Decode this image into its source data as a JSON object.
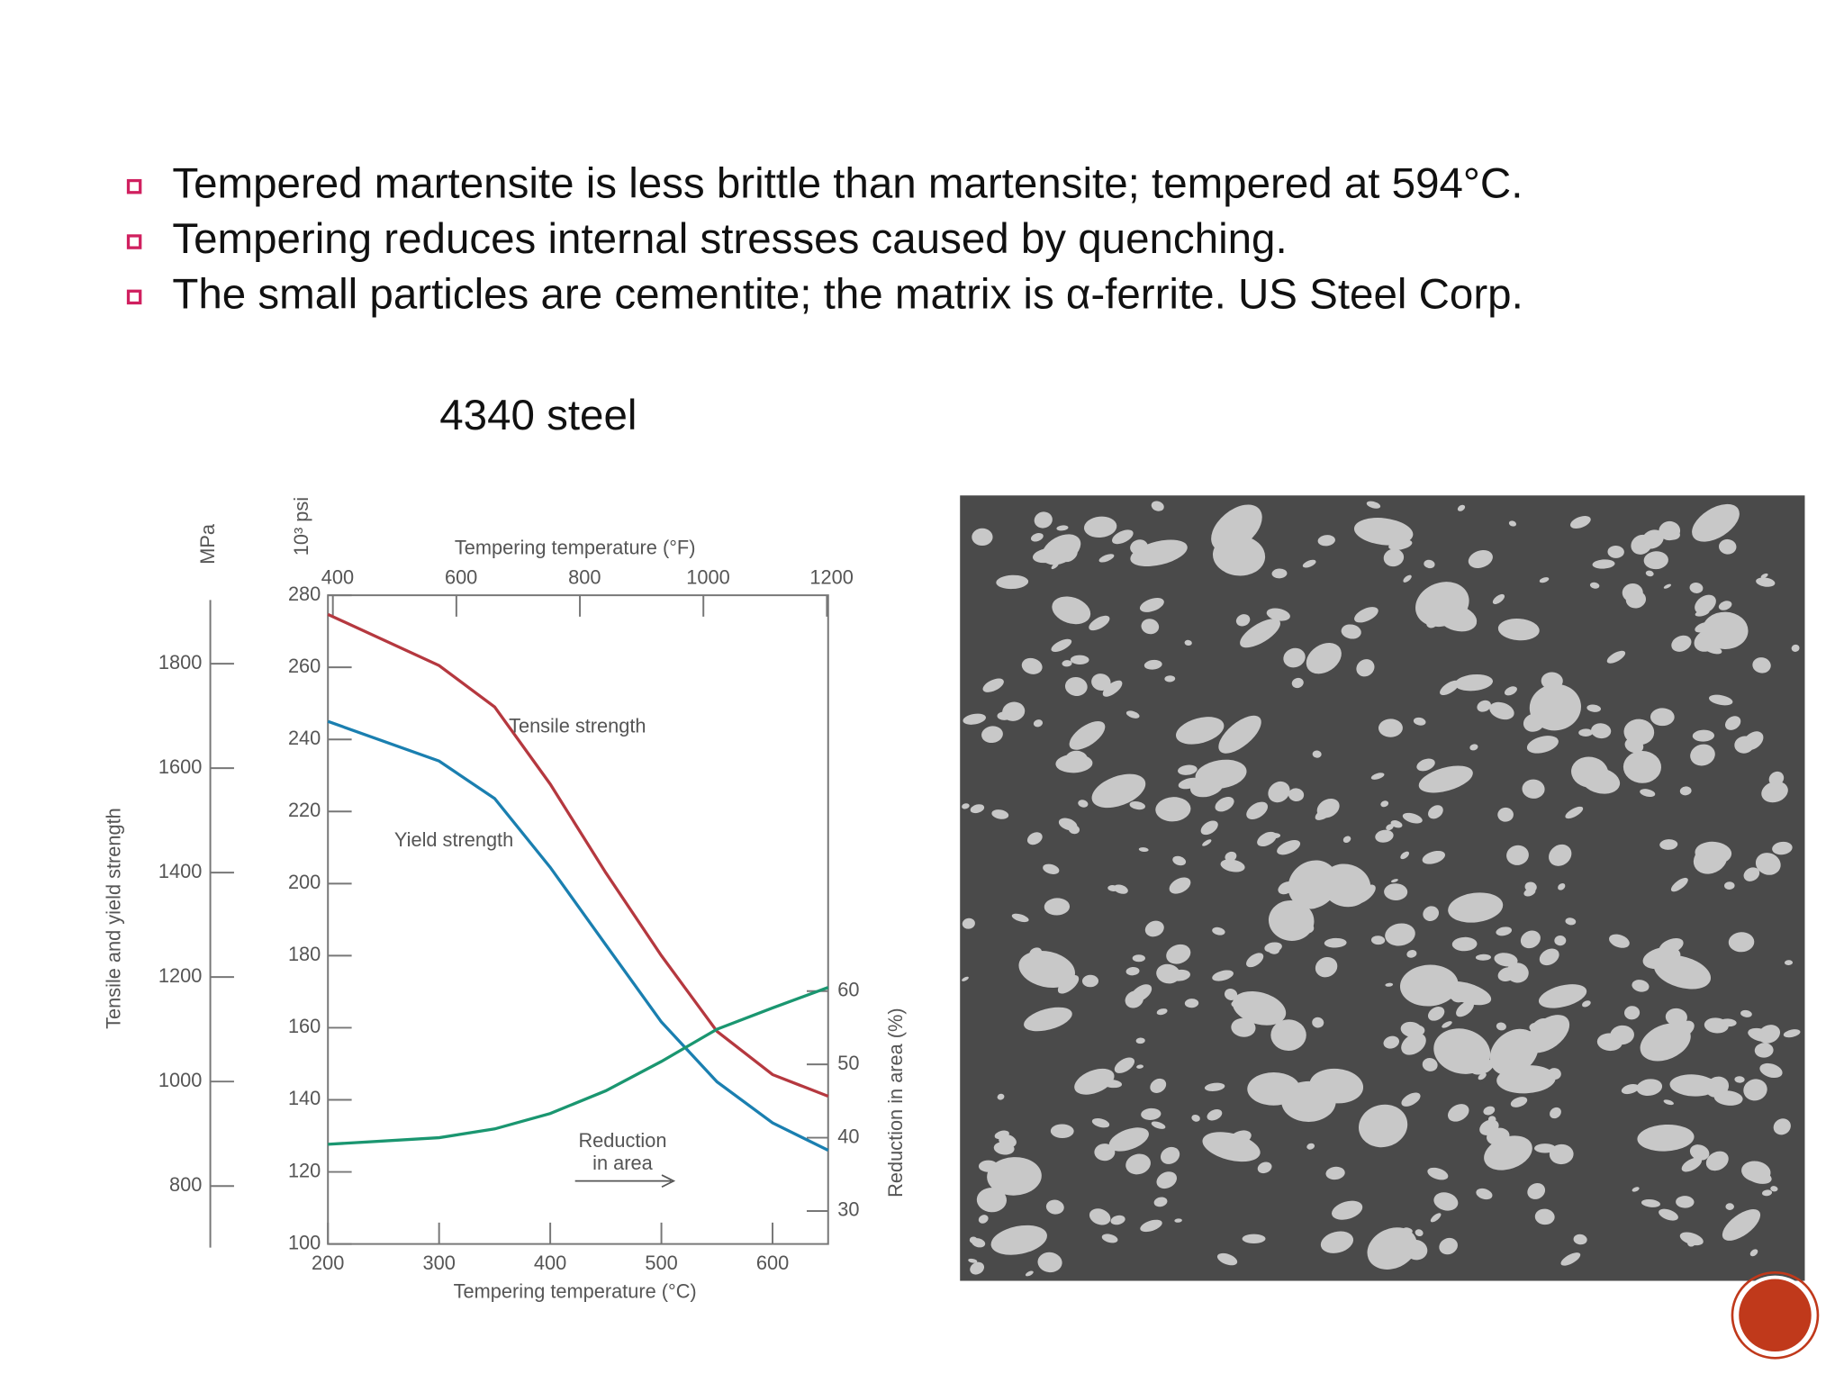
{
  "bullets": [
    "Tempered martensite is less brittle than martensite; tempered at 594°C.",
    "Tempering reduces internal stresses caused by quenching.",
    "The small particles are cementite; the matrix is α-ferrite. US Steel Corp."
  ],
  "caption": "4340 steel",
  "chart_data": {
    "type": "line",
    "xlabel": "Tempering temperature (°C)",
    "x2label": "Tempering temperature (°F)",
    "ylabel": "Tensile and yield strength",
    "ylabel_units": "10³ psi",
    "mpa_label": "MPa",
    "y2label": "Reduction in area (%)",
    "x": [
      200,
      300,
      350,
      400,
      450,
      500,
      550,
      600,
      650
    ],
    "xlim": [
      200,
      650
    ],
    "xticks": [
      200,
      300,
      400,
      500,
      600
    ],
    "x2lim": [
      392,
      1202
    ],
    "x2ticks": [
      400,
      600,
      800,
      1000,
      1200
    ],
    "ylim": [
      100,
      280
    ],
    "yticks": [
      100,
      120,
      140,
      160,
      180,
      200,
      220,
      240,
      260,
      280
    ],
    "mpalim": [
      689,
      1931
    ],
    "mpaticks": [
      800,
      1000,
      1200,
      1400,
      1600,
      1800
    ],
    "y2lim": [
      25.5,
      114
    ],
    "y2ticks": [
      30,
      40,
      50,
      60
    ],
    "series": [
      {
        "name": "Tensile strength",
        "color": "#b5383f",
        "values": [
          274.7,
          260.5,
          249,
          227.6,
          203,
          180,
          159,
          147,
          141
        ]
      },
      {
        "name": "Yield strength",
        "color": "#1a7fb0",
        "values": [
          245,
          234,
          223.6,
          204.5,
          183,
          161.6,
          145,
          133.6,
          126
        ]
      },
      {
        "name": [
          "Reduction",
          "in area"
        ],
        "color": "#1a9670",
        "axis": "y2",
        "values": [
          39.1,
          40,
          41.2,
          43.3,
          46.4,
          50.4,
          54.8,
          57.7,
          60.5
        ]
      }
    ]
  }
}
